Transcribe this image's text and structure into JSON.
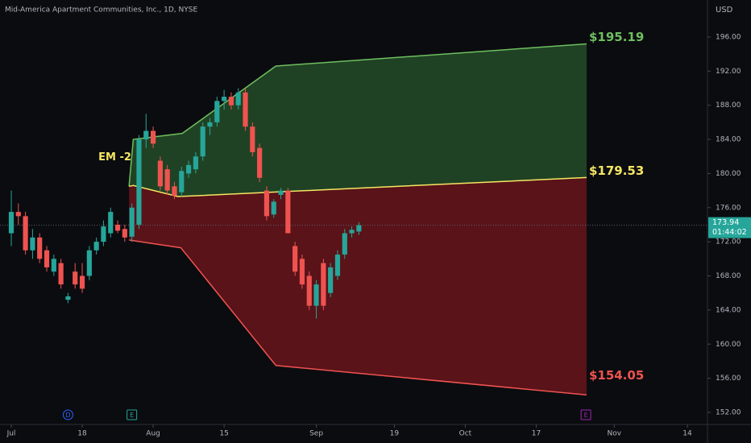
{
  "chart_data": {
    "type": "candlestick",
    "title": "Mid-America Apartment Communities, Inc., 1D, NYSE",
    "currency": "USD",
    "up_color": "#26a69a",
    "down_color": "#ef5350",
    "open": [
      173,
      175.5,
      175,
      171,
      172.5,
      171,
      168.5,
      169.5,
      165.2,
      168.5,
      168,
      168,
      171,
      172,
      173,
      174,
      173.5,
      172.6,
      174,
      184,
      185,
      181.5,
      180.5,
      178.5,
      177.8,
      180,
      180.5,
      182,
      185.5,
      186,
      188.5,
      189,
      188,
      189.5,
      185.5,
      183,
      178,
      175.2,
      177.5,
      178,
      171.5,
      170,
      168,
      164.5,
      169.5,
      166,
      168,
      170.5,
      173,
      173.2
    ],
    "high": [
      178,
      176.5,
      175.5,
      173.5,
      173,
      171.5,
      170.5,
      170,
      166,
      169.5,
      169.5,
      171.5,
      172.5,
      174.5,
      176,
      174.5,
      174,
      176.5,
      184.5,
      187,
      185.5,
      182,
      181,
      179,
      180.8,
      181.5,
      182.5,
      186,
      186.5,
      189,
      189.8,
      189.5,
      190,
      190,
      186,
      183.5,
      178.5,
      177,
      178.3,
      178.3,
      172,
      170.5,
      168.5,
      167.5,
      170,
      169.5,
      171,
      173.5,
      173.8,
      174.3
    ],
    "low": [
      171.5,
      174,
      170.5,
      170,
      169.5,
      168.5,
      168,
      166.5,
      164.8,
      166.5,
      166,
      167.5,
      170.5,
      171.5,
      172.5,
      173,
      172,
      172,
      173.5,
      183,
      183,
      178,
      177.5,
      177,
      177.3,
      179.5,
      180,
      181.5,
      184.5,
      185.5,
      187.5,
      187.5,
      187.5,
      185,
      182,
      179,
      174.5,
      174.8,
      177,
      173,
      168,
      166.5,
      164,
      163,
      164,
      165.5,
      167.5,
      170,
      172.5,
      172.8
    ],
    "close": [
      175.5,
      175,
      171,
      172.5,
      170,
      169,
      170,
      167,
      165.6,
      167,
      166.5,
      171,
      172,
      173.8,
      175.5,
      173.3,
      172.5,
      176,
      184,
      185,
      183.5,
      178.5,
      178,
      177.4,
      180.3,
      181,
      182,
      185.5,
      186,
      188.5,
      189,
      188,
      189.5,
      185.5,
      182.5,
      179.5,
      175,
      176.7,
      178,
      173,
      168.5,
      167,
      164.5,
      167,
      164.5,
      169,
      170.5,
      173,
      173.4,
      173.94
    ],
    "xlim": [
      -1.59,
      97.8
    ],
    "xticks": [
      {
        "value": 0,
        "label": "Jul"
      },
      {
        "value": 10,
        "label": "18"
      },
      {
        "value": 20,
        "label": "Aug"
      },
      {
        "value": 30,
        "label": "15"
      },
      {
        "value": 43,
        "label": "Sep"
      },
      {
        "value": 54,
        "label": "19"
      },
      {
        "value": 64,
        "label": "Oct"
      },
      {
        "value": 74,
        "label": "17"
      },
      {
        "value": 85,
        "label": "Nov"
      },
      {
        "value": 95.3,
        "label": "14"
      }
    ],
    "ylim": [
      150.3,
      200.34
    ],
    "yticks": [
      {
        "value": 152,
        "label": "152.00"
      },
      {
        "value": 156,
        "label": "156.00"
      },
      {
        "value": 160,
        "label": "160.00"
      },
      {
        "value": 164,
        "label": "164.00"
      },
      {
        "value": 168,
        "label": "168.00"
      },
      {
        "value": 172,
        "label": "172.00"
      },
      {
        "value": 176,
        "label": "176.00"
      },
      {
        "value": 180,
        "label": "180.00"
      },
      {
        "value": 184,
        "label": "184.00"
      },
      {
        "value": 188,
        "label": "188.00"
      },
      {
        "value": 192,
        "label": "192.00"
      },
      {
        "value": 196,
        "label": "196.00"
      }
    ],
    "last_price": 173.94,
    "countdown": "01:44:02",
    "expected_move": {
      "label": "EM -2",
      "label_color": "#f5e663",
      "upper": {
        "x": [
          16.6,
          17.2,
          24.1,
          37.3,
          81.1
        ],
        "values": [
          178.5,
          184,
          184.7,
          192.6,
          195.19
        ],
        "value_label": "$195.19",
        "color": "#6fbf5f"
      },
      "middle": {
        "x": [
          16.6,
          17.2,
          23.5,
          81.1
        ],
        "values": [
          178.5,
          178.6,
          177.3,
          179.53
        ],
        "value_label": "$179.53",
        "color": "#f5e663"
      },
      "lower": {
        "x": [
          16.6,
          23.9,
          37.3,
          81.1
        ],
        "values": [
          172.2,
          171.3,
          157.5,
          154.05
        ],
        "value_label": "$154.05",
        "color": "#ef5350"
      }
    },
    "events": [
      {
        "label": "D",
        "x": 8,
        "color": "#2962ff"
      },
      {
        "label": "E",
        "x": 17,
        "color": "#26a69a"
      },
      {
        "label": "E",
        "x": 81,
        "color": "#9c27b0"
      }
    ]
  }
}
